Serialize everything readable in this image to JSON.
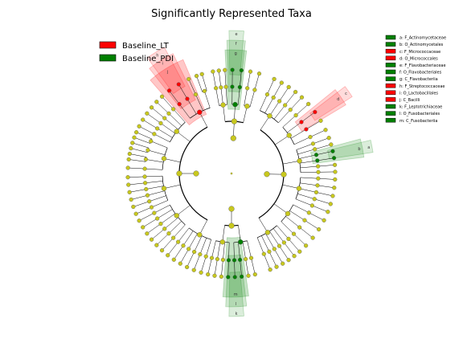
{
  "chart_data": {
    "type": "cladogram",
    "title": "Significantly Represented Taxa",
    "colors": {
      "lt": "#ff0000",
      "pdi": "#008000",
      "node": "#c8c81e",
      "line": "#000000"
    },
    "legend": {
      "placement": "top-left",
      "items": [
        {
          "label": "Baseline_LT",
          "color": "#ff0000"
        },
        {
          "label": "Baseline_PDI",
          "color": "#008000"
        }
      ]
    },
    "key": {
      "placement": "top-right",
      "items": [
        {
          "text": "a: F_Actinomycetaceae",
          "color": "#008000"
        },
        {
          "text": "b: O_Actinomycetales",
          "color": "#008000"
        },
        {
          "text": "c: F_Micrococcaceae",
          "color": "#ff0000"
        },
        {
          "text": "d: O_Micrococcales",
          "color": "#ff0000"
        },
        {
          "text": "e: F_Flavobacteriaceae",
          "color": "#008000"
        },
        {
          "text": "f: O_Flavobacteriales",
          "color": "#008000"
        },
        {
          "text": "g: C_Flavobacteriia",
          "color": "#008000"
        },
        {
          "text": "h: F_Streptococcaceae",
          "color": "#ff0000"
        },
        {
          "text": "i: O_Lactobacillales",
          "color": "#ff0000"
        },
        {
          "text": "j: C_Bacilli",
          "color": "#ff0000"
        },
        {
          "text": "k: F_Leptotrichiaceae",
          "color": "#008000"
        },
        {
          "text": "l: O_Fusobacteriales",
          "color": "#008000"
        },
        {
          "text": "m: C_Fusobacteriia",
          "color": "#008000"
        }
      ]
    },
    "clades": [
      {
        "label": "a",
        "group": "pdi",
        "angle": 79,
        "width": 5,
        "level": 5
      },
      {
        "label": "b",
        "group": "pdi",
        "angle": 79,
        "width": 8,
        "level": 4
      },
      {
        "label": "c",
        "group": "lt",
        "angle": 55,
        "width": 5,
        "level": 5
      },
      {
        "label": "d",
        "group": "lt",
        "angle": 55,
        "width": 8,
        "level": 4
      },
      {
        "label": "e",
        "group": "pdi",
        "angle": 2,
        "width": 6,
        "level": 5
      },
      {
        "label": "f",
        "group": "pdi",
        "angle": 2,
        "width": 8,
        "level": 4
      },
      {
        "label": "g",
        "group": "pdi",
        "angle": 2,
        "width": 10,
        "level": 3
      },
      {
        "label": "h",
        "group": "lt",
        "angle": -32,
        "width": 8,
        "level": 5
      },
      {
        "label": "i",
        "group": "lt",
        "angle": -32,
        "width": 12,
        "level": 4
      },
      {
        "label": "j",
        "group": "lt",
        "angle": -32,
        "width": 18,
        "level": 3
      },
      {
        "label": "k",
        "group": "pdi",
        "angle": 178,
        "width": 6,
        "level": 5
      },
      {
        "label": "l",
        "group": "pdi",
        "angle": 178,
        "width": 9,
        "level": 4
      },
      {
        "label": "m",
        "group": "pdi",
        "angle": 178,
        "width": 12,
        "level": 3
      }
    ]
  }
}
